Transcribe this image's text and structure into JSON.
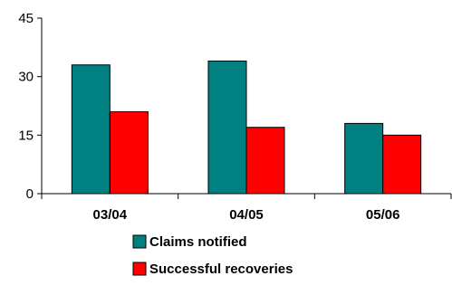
{
  "chart_data": {
    "type": "bar",
    "categories": [
      "03/04",
      "04/05",
      "05/06"
    ],
    "series": [
      {
        "name": "Claims notified",
        "values": [
          33,
          34,
          18
        ],
        "color": "#008080"
      },
      {
        "name": "Successful recoveries",
        "values": [
          21,
          17,
          15
        ],
        "color": "#ff0000"
      }
    ],
    "yticks": [
      0,
      15,
      30,
      45
    ],
    "ylim": [
      0,
      45
    ],
    "grid": false,
    "legend_position": "bottom"
  }
}
